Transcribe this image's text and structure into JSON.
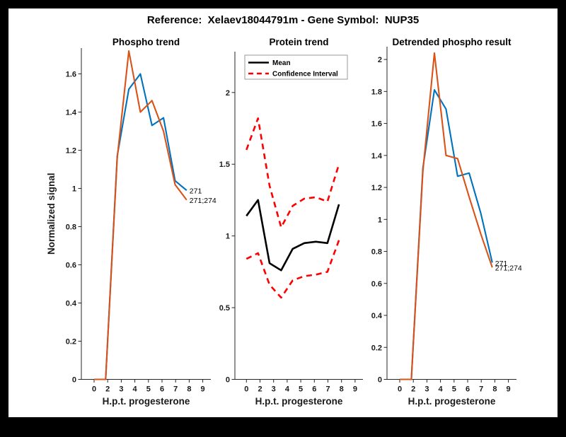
{
  "figure": {
    "title": "Reference:  Xelaev18044791m - Gene Symbol:  NUP35",
    "background_color": "#000000",
    "canvas_color": "#ffffff"
  },
  "colors": {
    "blue": "#0072BD",
    "orange": "#D95319",
    "red": "#ff0000",
    "black": "#000000",
    "axis": "#262626"
  },
  "chart_data": [
    {
      "type": "line",
      "slug": "phospho-trend",
      "title": "Phospho trend",
      "xlabel": "H.p.t. progesterone",
      "ylabel": "Normalized signal",
      "x_tick_labels": [
        "0",
        "2",
        "3",
        "4",
        "5",
        "6",
        "7",
        "8",
        "9"
      ],
      "y_ticks": [
        0,
        0.2,
        0.4,
        0.6,
        0.8,
        1,
        1.2,
        1.4,
        1.6
      ],
      "y_tick_labels": [
        "0",
        "0.2",
        "0.4",
        "0.6",
        "0.8",
        "1",
        "1.2",
        "1.4",
        "1.6"
      ],
      "ylim": [
        0,
        1.735
      ],
      "grid": false,
      "series": [
        {
          "slug": "271",
          "name": "271",
          "color": "blue",
          "style": "solid",
          "end_label": "271",
          "values": [
            0,
            0,
            1.17,
            1.52,
            1.6,
            1.33,
            1.37,
            1.04,
            0.99
          ]
        },
        {
          "slug": "271-274",
          "name": "271;274",
          "color": "orange",
          "style": "solid",
          "end_label": "271;274",
          "values": [
            0,
            0,
            1.16,
            1.72,
            1.4,
            1.46,
            1.3,
            1.02,
            0.94
          ]
        }
      ]
    },
    {
      "type": "line",
      "slug": "protein-trend",
      "title": "Protein trend",
      "xlabel": "H.p.t. progesterone",
      "ylabel": "",
      "x_tick_labels": [
        "0",
        "2",
        "3",
        "4",
        "5",
        "6",
        "7",
        "8",
        "9"
      ],
      "y_ticks": [
        0,
        0.5,
        1,
        1.5,
        2
      ],
      "y_tick_labels": [
        "0",
        "0.5",
        "1",
        "1.5",
        "2"
      ],
      "ylim": [
        0,
        2.285
      ],
      "grid": false,
      "series": [
        {
          "slug": "mean",
          "name": "Mean",
          "color": "black",
          "style": "solid",
          "values": [
            1.14,
            1.25,
            0.81,
            0.76,
            0.91,
            0.95,
            0.96,
            0.95,
            1.22
          ]
        },
        {
          "slug": "ci-upper",
          "name": "Confidence Interval",
          "color": "red",
          "style": "dashed",
          "values": [
            1.6,
            1.82,
            1.35,
            1.06,
            1.21,
            1.26,
            1.27,
            1.24,
            1.5
          ]
        },
        {
          "slug": "ci-lower",
          "name": "Confidence Interval",
          "color": "red",
          "style": "dashed",
          "values": [
            0.84,
            0.88,
            0.66,
            0.57,
            0.69,
            0.72,
            0.73,
            0.75,
            0.97
          ]
        }
      ],
      "legend": {
        "position": "top-left-inside",
        "entries": [
          {
            "slug": "mean",
            "label": "Mean",
            "color": "black",
            "style": "solid"
          },
          {
            "slug": "confidence-interval",
            "label": "Confidence Interval",
            "color": "red",
            "style": "dashed"
          }
        ]
      }
    },
    {
      "type": "line",
      "slug": "detrended-phospho-result",
      "title": "Detrended phospho result",
      "xlabel": "H.p.t. progesterone",
      "ylabel": "",
      "x_tick_labels": [
        "0",
        "2",
        "3",
        "4",
        "5",
        "6",
        "7",
        "8",
        "9"
      ],
      "y_ticks": [
        0,
        0.2,
        0.4,
        0.6,
        0.8,
        1,
        1.2,
        1.4,
        1.6,
        1.8,
        2
      ],
      "y_tick_labels": [
        "0",
        "0.2",
        "0.4",
        "0.6",
        "0.8",
        "1",
        "1.2",
        "1.4",
        "1.6",
        "1.8",
        "2"
      ],
      "ylim": [
        0,
        2.08
      ],
      "grid": false,
      "series": [
        {
          "slug": "271",
          "name": "271",
          "color": "blue",
          "style": "solid",
          "end_label": "271",
          "values": [
            0,
            0,
            1.32,
            1.81,
            1.69,
            1.27,
            1.29,
            1.04,
            0.73
          ]
        },
        {
          "slug": "271-274",
          "name": "271;274",
          "color": "orange",
          "style": "solid",
          "end_label": "271;274",
          "values": [
            0,
            0,
            1.3,
            2.04,
            1.4,
            1.38,
            1.14,
            0.91,
            0.7
          ]
        }
      ]
    }
  ]
}
